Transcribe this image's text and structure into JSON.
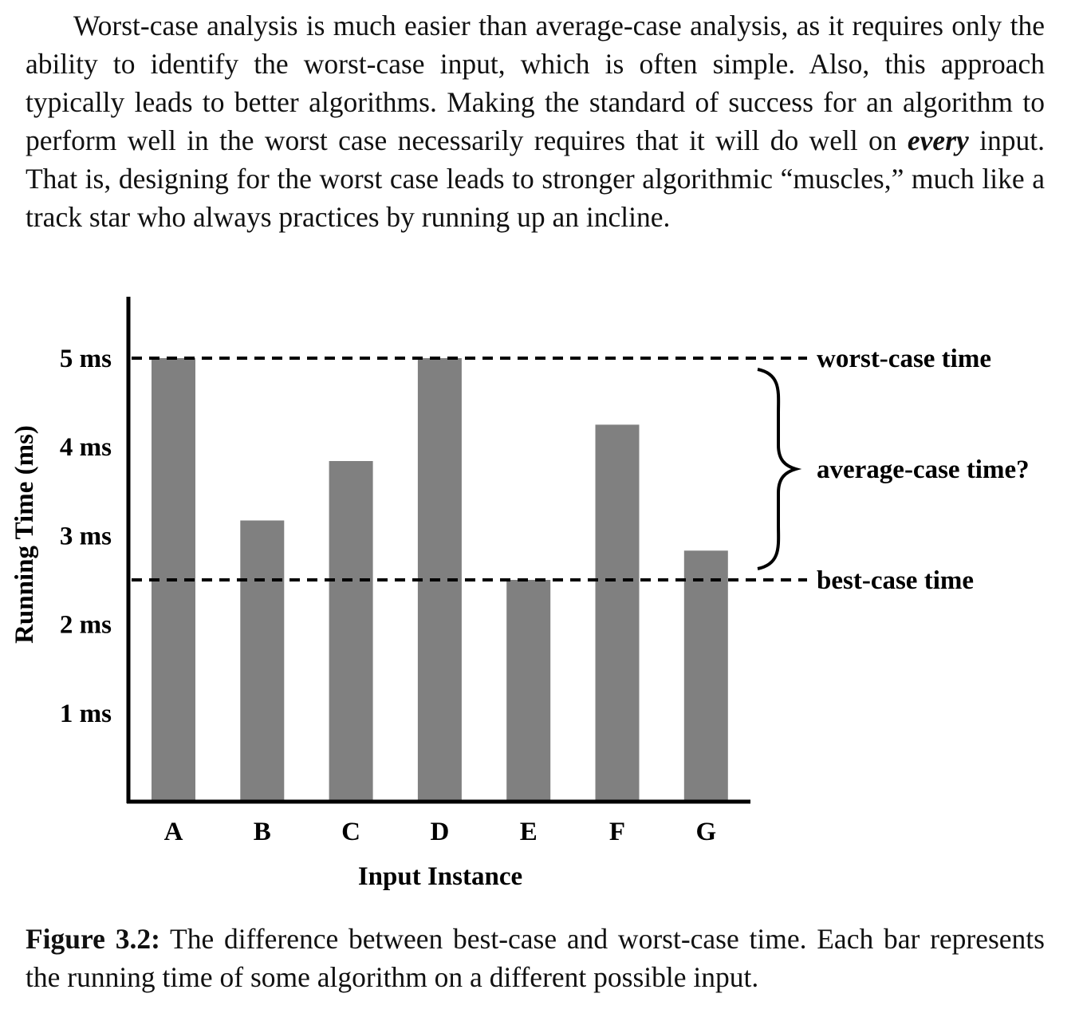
{
  "paragraph": {
    "part1": "Worst-case analysis is much easier than average-case analysis, as it requires only the ability to identify the worst-case input, which is often simple. Also, this approach typically leads to better algorithms. Making the standard of success for an algorithm to perform well in the worst case necessarily requires that it will do well on ",
    "emphasis": "every",
    "part2": " input. That is, designing for the worst case leads to stronger algorithmic “muscles,” much like a track star who always practices by running up an incline."
  },
  "chart_data": {
    "type": "bar",
    "categories": [
      "A",
      "B",
      "C",
      "D",
      "E",
      "F",
      "G"
    ],
    "values": [
      5.0,
      3.17,
      3.84,
      5.0,
      2.5,
      4.25,
      2.83
    ],
    "xlabel": "Input Instance",
    "ylabel": "Running Time (ms)",
    "ylim": [
      0,
      5.7
    ],
    "yticks": [
      {
        "value": 1,
        "label": "1 ms"
      },
      {
        "value": 2,
        "label": "2 ms"
      },
      {
        "value": 3,
        "label": "3 ms"
      },
      {
        "value": 4,
        "label": "4 ms"
      },
      {
        "value": 5,
        "label": "5 ms"
      }
    ],
    "grid": false,
    "bar_color": "#808080",
    "reference_lines": [
      {
        "value": 5,
        "label": "worst-case time",
        "style": "dashed"
      },
      {
        "value": 2.5,
        "label": "best-case time",
        "style": "dashed"
      }
    ],
    "brace": {
      "from": 2.5,
      "to": 5,
      "label": "average-case time?"
    }
  },
  "caption": {
    "label": "Figure 3.2:",
    "text": "The difference between best-case and worst-case time. Each bar represents the running time of some algorithm on a different possible input."
  }
}
